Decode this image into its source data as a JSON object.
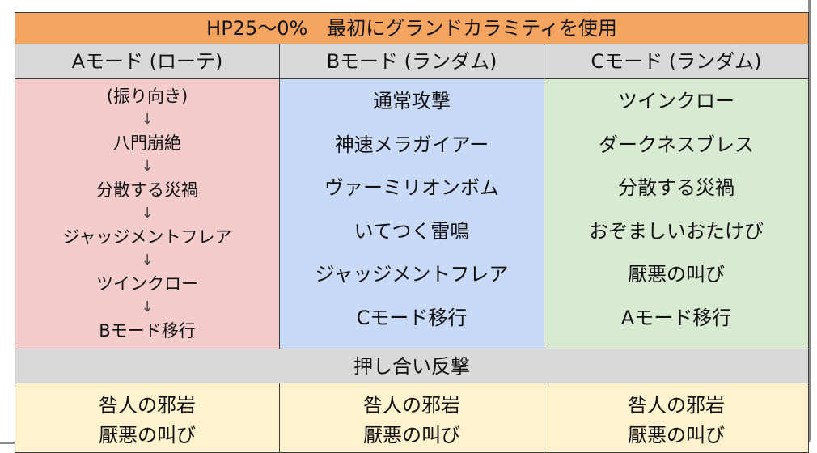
{
  "title": "HP25〜0%　最初にグランドカラミティを使用",
  "modes": {
    "a": "Aモード (ローテ)",
    "b": "Bモード (ランダム)",
    "c": "Cモード (ランダム)"
  },
  "arrow": "↓",
  "mode_a_steps": [
    "(振り向き)",
    "八門崩絶",
    "分散する災禍",
    "ジャッジメントフレア",
    "ツインクロー",
    "Bモード移行"
  ],
  "mode_b_moves": [
    "通常攻撃",
    "神速メラガイアー",
    "ヴァーミリオンボム",
    "いてつく雷鳴",
    "ジャッジメントフレア",
    "Cモード移行"
  ],
  "mode_c_moves": [
    "ツインクロー",
    "ダークネスブレス",
    "分散する災禍",
    "おぞましいおたけび",
    "厭悪の叫び",
    "Aモード移行"
  ],
  "counter": {
    "label": "押し合い反撃",
    "a": [
      "咎人の邪岩",
      "厭悪の叫び"
    ],
    "b": [
      "咎人の邪岩",
      "厭悪の叫び"
    ],
    "c": [
      "咎人の邪岩",
      "厭悪の叫び"
    ]
  },
  "colors": {
    "title_bg": "#f5a55f",
    "header_bg": "#d9d9d9",
    "mode_a_bg": "#f4cccc",
    "mode_b_bg": "#c9daf8",
    "mode_c_bg": "#d9ead3",
    "counter_bg": "#fff2cc"
  }
}
